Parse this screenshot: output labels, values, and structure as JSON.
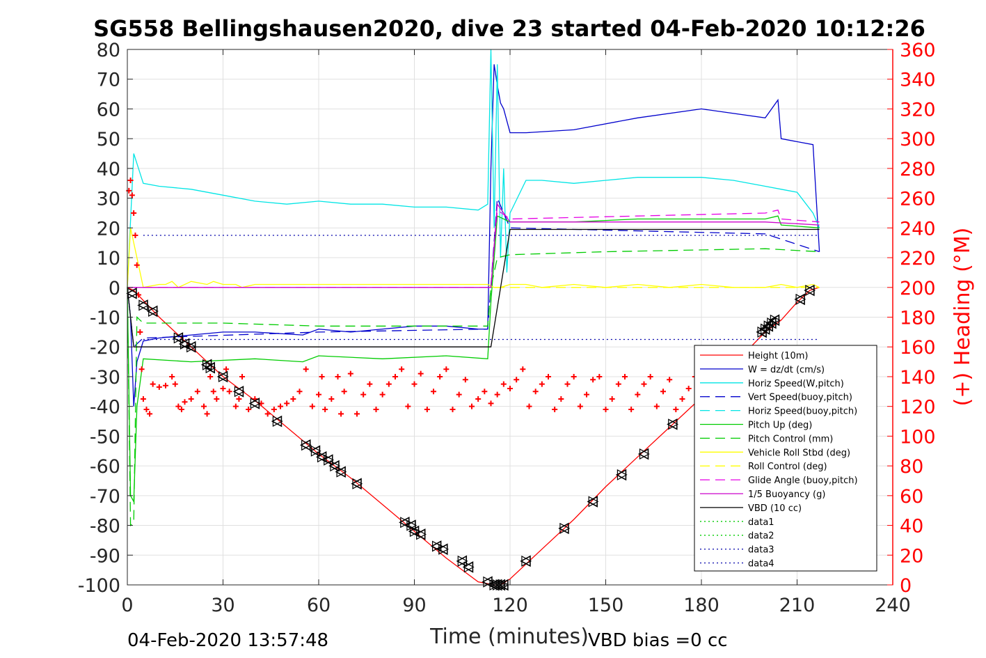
{
  "chart_data": {
    "type": "line",
    "title": "SG558 Bellingshausen2020, dive 23 started 04-Feb-2020 10:12:26",
    "xlabel": "Time (minutes)",
    "ylabel_right": "(+) Heading (°M)",
    "xlim": [
      0,
      240
    ],
    "ylim_left": [
      -100,
      80
    ],
    "ylim_right": [
      0,
      360
    ],
    "x_ticks": [
      0,
      30,
      60,
      90,
      120,
      150,
      180,
      210,
      240
    ],
    "y_ticks_left": [
      80,
      70,
      60,
      50,
      40,
      30,
      20,
      10,
      0,
      -10,
      -20,
      -30,
      -40,
      -50,
      -60,
      -70,
      -80,
      -90,
      -100
    ],
    "y_ticks_right": [
      360,
      340,
      320,
      300,
      280,
      260,
      240,
      220,
      200,
      180,
      160,
      140,
      120,
      100,
      80,
      60,
      40,
      20,
      0
    ],
    "grid": true,
    "legend_position": "lower-right",
    "footer_left": "04-Feb-2020 13:57:48",
    "footer_right": "VBD bias =0 cc",
    "legend": [
      {
        "label": "Height (10m)",
        "color": "#ff0000",
        "dash": "solid"
      },
      {
        "label": "W = dz/dt (cm/s)",
        "color": "#0000cc",
        "dash": "solid"
      },
      {
        "label": "Horiz Speed(W,pitch)",
        "color": "#00e5e5",
        "dash": "solid"
      },
      {
        "label": "Vert Speed(buoy,pitch)",
        "color": "#0000cc",
        "dash": "long"
      },
      {
        "label": "Horiz Speed(buoy,pitch)",
        "color": "#00e5e5",
        "dash": "long"
      },
      {
        "label": "Pitch Up (deg)",
        "color": "#00cc00",
        "dash": "solid"
      },
      {
        "label": "Pitch Control (mm)",
        "color": "#00cc00",
        "dash": "long"
      },
      {
        "label": "Vehicle Roll Stbd (deg)",
        "color": "#ffff00",
        "dash": "solid"
      },
      {
        "label": "Roll Control (deg)",
        "color": "#ffff00",
        "dash": "long"
      },
      {
        "label": "Glide Angle (buoy,pitch)",
        "color": "#e500e5",
        "dash": "long"
      },
      {
        "label": "1/5 Buoyancy (g)",
        "color": "#cc00cc",
        "dash": "solid"
      },
      {
        "label": "VBD (10 cc)",
        "color": "#000000",
        "dash": "solid"
      },
      {
        "label": "data1",
        "color": "#00cc00",
        "dash": "dot"
      },
      {
        "label": "data2",
        "color": "#00cc00",
        "dash": "dot"
      },
      {
        "label": "data3",
        "color": "#0000aa",
        "dash": "dot"
      },
      {
        "label": "data4",
        "color": "#0000aa",
        "dash": "dot"
      }
    ],
    "series": [
      {
        "name": "Height (10m)",
        "axis": "left",
        "color": "#ff0000",
        "x": [
          0,
          2,
          10,
          20,
          30,
          40,
          50,
          60,
          70,
          80,
          90,
          100,
          110,
          115,
          117,
          120,
          130,
          140,
          150,
          160,
          170,
          180,
          190,
          200,
          205,
          210,
          214,
          217
        ],
        "y": [
          0,
          -1,
          -10,
          -20,
          -30,
          -38,
          -47,
          -56,
          -64,
          -73,
          -82,
          -91,
          -99,
          -100,
          -100,
          -98,
          -88,
          -78,
          -67,
          -57,
          -47,
          -37,
          -26,
          -15,
          -11,
          -5,
          -1,
          0
        ]
      },
      {
        "name": "W = dz/dt (cm/s)",
        "axis": "left",
        "color": "#0000cc",
        "x": [
          0,
          1,
          2,
          3,
          5,
          10,
          20,
          30,
          40,
          55,
          60,
          70,
          80,
          90,
          100,
          110,
          113,
          114,
          115,
          116,
          117,
          118,
          120,
          125,
          140,
          160,
          180,
          200,
          204,
          205,
          215,
          217
        ],
        "y": [
          0,
          -10,
          -40,
          -25,
          -18,
          -17,
          -16,
          -15,
          -15,
          -16,
          -14,
          -15,
          -14,
          -13,
          -13,
          -14,
          -14,
          40,
          75,
          68,
          62,
          60,
          52,
          52,
          53,
          57,
          60,
          57,
          63,
          50,
          48,
          12
        ]
      },
      {
        "name": "Horiz Speed(W,pitch)",
        "axis": "left",
        "color": "#00e5e5",
        "x": [
          0,
          2,
          5,
          10,
          20,
          30,
          40,
          50,
          60,
          70,
          80,
          90,
          100,
          110,
          113,
          114,
          115,
          116,
          117,
          118,
          119,
          120,
          125,
          130,
          140,
          150,
          160,
          170,
          180,
          190,
          200,
          205,
          210,
          215,
          217
        ],
        "y": [
          0,
          45,
          35,
          34,
          33,
          31,
          29,
          28,
          29,
          28,
          28,
          27,
          27,
          26,
          28,
          80,
          20,
          75,
          10,
          40,
          5,
          25,
          36,
          36,
          35,
          36,
          37,
          37,
          37,
          36,
          34,
          33,
          32,
          25,
          20
        ]
      },
      {
        "name": "Vert Speed(buoy,pitch)",
        "axis": "left",
        "color": "#0000cc",
        "dash": "long",
        "x": [
          0,
          2,
          5,
          60,
          113,
          116,
          120,
          200,
          217
        ],
        "y": [
          0,
          -20,
          -17,
          -15,
          -14,
          30,
          20,
          18,
          12
        ]
      },
      {
        "name": "Pitch Up (deg)",
        "axis": "left",
        "color": "#00cc00",
        "x": [
          0,
          1,
          2,
          3,
          5,
          20,
          40,
          55,
          60,
          80,
          100,
          113,
          114,
          116,
          120,
          140,
          160,
          180,
          200,
          204,
          205,
          217
        ],
        "y": [
          0,
          -70,
          -72,
          -40,
          -24,
          -25,
          -24,
          -25,
          -23,
          -24,
          -23,
          -24,
          -5,
          24,
          22,
          22,
          23,
          23,
          23,
          24,
          21,
          20
        ]
      },
      {
        "name": "Pitch Control (mm)",
        "axis": "left",
        "color": "#00cc00",
        "dash": "long",
        "x": [
          0,
          1,
          2,
          3,
          5,
          30,
          60,
          113,
          114,
          116,
          120,
          150,
          200,
          217
        ],
        "y": [
          0,
          -80,
          -79,
          -10,
          -12,
          -12,
          -13,
          -13,
          0,
          10,
          11,
          12,
          13,
          12
        ]
      },
      {
        "name": "Vehicle Roll Stbd (deg)",
        "axis": "left",
        "color": "#ffff00",
        "x": [
          0,
          1,
          3,
          5,
          10,
          12,
          14,
          16,
          20,
          25,
          27,
          30,
          34,
          36,
          40,
          45,
          50,
          55,
          60,
          65,
          70,
          80,
          90,
          100,
          110,
          113,
          115,
          117,
          120,
          125,
          130,
          140,
          150,
          160,
          170,
          180,
          190,
          200,
          205,
          210,
          215,
          217
        ],
        "y": [
          0,
          20,
          10,
          0,
          1,
          1,
          2,
          0,
          2,
          1,
          2,
          1,
          1,
          0,
          1,
          1,
          1,
          1,
          1,
          1,
          1,
          1,
          1,
          1,
          1,
          1,
          0,
          0,
          1,
          1,
          0,
          1,
          0,
          1,
          0,
          1,
          0,
          0,
          1,
          0,
          1,
          0
        ]
      },
      {
        "name": "Roll Control (deg)",
        "axis": "left",
        "color": "#ffff00",
        "dash": "long",
        "x": [
          0,
          5,
          50,
          100,
          115,
          120,
          217
        ],
        "y": [
          0,
          0,
          0,
          0,
          0,
          0,
          0
        ]
      },
      {
        "name": "Glide Angle (buoy,pitch)",
        "axis": "left",
        "color": "#e500e5",
        "dash": "long",
        "x": [
          0,
          2,
          5,
          60,
          113,
          114,
          116,
          120,
          160,
          200,
          204,
          205,
          217
        ],
        "y": [
          0,
          0,
          0,
          0,
          0,
          0,
          26,
          23,
          24,
          25,
          26,
          23,
          22
        ]
      },
      {
        "name": "1/5 Buoyancy (g)",
        "axis": "left",
        "color": "#cc00cc",
        "x": [
          0,
          2,
          5,
          60,
          113,
          114,
          116,
          120,
          200,
          217
        ],
        "y": [
          0,
          0,
          0,
          0,
          0,
          0,
          28,
          22,
          22,
          21
        ]
      },
      {
        "name": "VBD (10 cc)",
        "axis": "left",
        "color": "#000000",
        "x": [
          0,
          2,
          5,
          113,
          114,
          120,
          217
        ],
        "y": [
          0,
          -20,
          -20,
          -20,
          -20,
          19.5,
          19.5
        ]
      },
      {
        "name": "data3",
        "axis": "left",
        "color": "#0000aa",
        "dash": "dot",
        "x": [
          5,
          217
        ],
        "y": [
          17.5,
          17.5
        ]
      },
      {
        "name": "data4",
        "axis": "left",
        "color": "#0000aa",
        "dash": "dot",
        "x": [
          5,
          217
        ],
        "y": [
          -17.5,
          -17.5
        ]
      }
    ],
    "heading_points": {
      "axis": "right",
      "color": "#ff0000",
      "x": [
        0.5,
        1,
        1.5,
        2,
        2.5,
        3,
        3.5,
        4,
        4.5,
        5,
        6,
        7,
        8,
        10,
        12,
        14,
        15,
        16,
        17,
        18,
        20,
        22,
        24,
        25,
        26,
        27,
        28,
        30,
        31,
        32,
        34,
        35,
        36,
        38,
        40,
        42,
        44,
        46,
        48,
        50,
        52,
        54,
        56,
        58,
        60,
        61,
        62,
        64,
        66,
        67,
        68,
        70,
        72,
        74,
        76,
        78,
        80,
        82,
        84,
        86,
        88,
        90,
        92,
        94,
        96,
        98,
        100,
        102,
        104,
        106,
        108,
        110,
        112,
        114,
        116,
        118,
        120,
        122,
        124,
        126,
        128,
        130,
        132,
        134,
        136,
        138,
        140,
        142,
        144,
        146,
        148,
        150,
        152,
        154,
        156,
        158,
        160,
        162,
        164,
        166,
        168,
        170,
        172,
        174,
        176,
        178,
        180,
        182,
        184,
        186,
        188,
        190,
        192,
        194,
        196,
        198,
        200,
        202,
        204,
        206,
        208,
        210,
        212,
        214,
        216
      ],
      "y": [
        265,
        272,
        262,
        250,
        235,
        215,
        195,
        170,
        145,
        125,
        118,
        115,
        135,
        133,
        134,
        140,
        135,
        120,
        118,
        123,
        125,
        130,
        120,
        115,
        140,
        130,
        125,
        132,
        145,
        130,
        120,
        125,
        140,
        118,
        125,
        122,
        115,
        118,
        120,
        122,
        125,
        130,
        145,
        120,
        128,
        140,
        118,
        125,
        140,
        115,
        130,
        142,
        115,
        128,
        135,
        118,
        128,
        135,
        140,
        145,
        120,
        135,
        142,
        118,
        130,
        140,
        145,
        118,
        128,
        138,
        120,
        125,
        130,
        122,
        128,
        135,
        132,
        138,
        145,
        120,
        130,
        135,
        140,
        118,
        125,
        135,
        140,
        120,
        128,
        138,
        140,
        118,
        125,
        135,
        140,
        118,
        128,
        135,
        140,
        120,
        130,
        138,
        118,
        125,
        132,
        140,
        120,
        128,
        138,
        122,
        130,
        135,
        130,
        122,
        128,
        132,
        135,
        125,
        130,
        132,
        128,
        125,
        130,
        128,
        126
      ]
    },
    "markers": {
      "x": [
        1.5,
        5,
        8,
        16,
        18,
        20,
        25,
        26,
        30,
        35,
        40,
        47,
        56,
        59,
        61,
        63,
        65,
        67,
        72,
        87,
        89,
        90,
        92,
        97,
        99,
        105,
        107,
        113,
        115,
        116,
        117,
        118,
        125,
        137,
        146,
        155,
        162,
        171,
        199,
        200,
        201,
        202,
        203,
        211,
        214
      ],
      "y": [
        -2,
        -6,
        -8,
        -17,
        -19,
        -20,
        -26,
        -27,
        -30,
        -35,
        -39,
        -45,
        -53,
        -55,
        -57,
        -58,
        -60,
        -62,
        -66,
        -79,
        -80,
        -82,
        -83,
        -87,
        -88,
        -92,
        -94,
        -99,
        -100,
        -100,
        -100,
        -100,
        -92,
        -81,
        -72,
        -63,
        -56,
        -46,
        -15,
        -14,
        -13,
        -12,
        -11,
        -4,
        -1
      ]
    }
  }
}
